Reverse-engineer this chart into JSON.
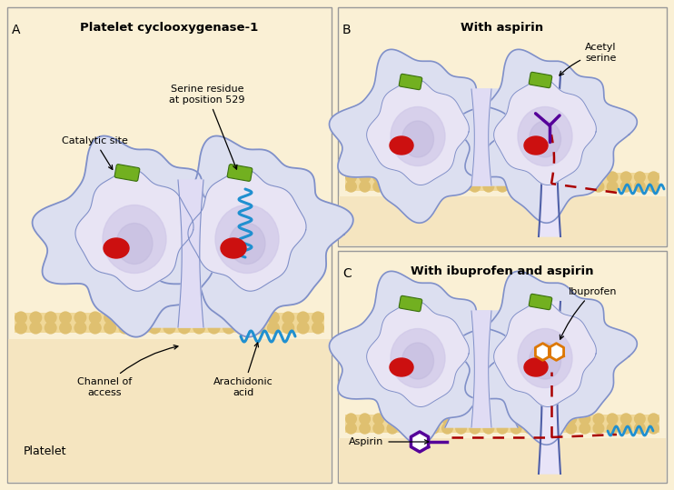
{
  "fig_width": 7.42,
  "fig_height": 5.39,
  "dpi": 100,
  "bg_color": "#FAF0D5",
  "panel_bg_A": "#FAF0D5",
  "panel_bg_BC": "#FAF0D5",
  "panel_border": "#999999",
  "protein_outer": "#DCDFF0",
  "protein_outer_edge": "#8090C8",
  "protein_inner1": "#E8E4F4",
  "protein_inner2": "#D0C8E8",
  "protein_inner3": "#C0B8DC",
  "membrane_fill": "#F0D898",
  "membrane_bead": "#DFC070",
  "catalytic_color": "#72B020",
  "active_site_color": "#CC1010",
  "arachidonic_color": "#2090D0",
  "aspirin_color": "#550099",
  "ibuprofen_color": "#DD7700",
  "dashed_color": "#AA0000",
  "channel_line_color": "#5060A8",
  "panel_A_title": "Platelet cyclooxygenase-1",
  "panel_B_title": "With aspirin",
  "panel_C_title": "With ibuprofen and aspirin",
  "label_catalytic": "Catalytic site",
  "label_serine": "Serine residue\nat position 529",
  "label_channel": "Channel of\naccess",
  "label_arachidonic": "Arachidonic\nacid",
  "label_platelet": "Platelet",
  "label_acetyl": "Acetyl\nserine",
  "label_ibuprofen": "Ibuprofen",
  "label_aspirin": "Aspirin",
  "panel_label_A": "A",
  "panel_label_B": "B",
  "panel_label_C": "C"
}
